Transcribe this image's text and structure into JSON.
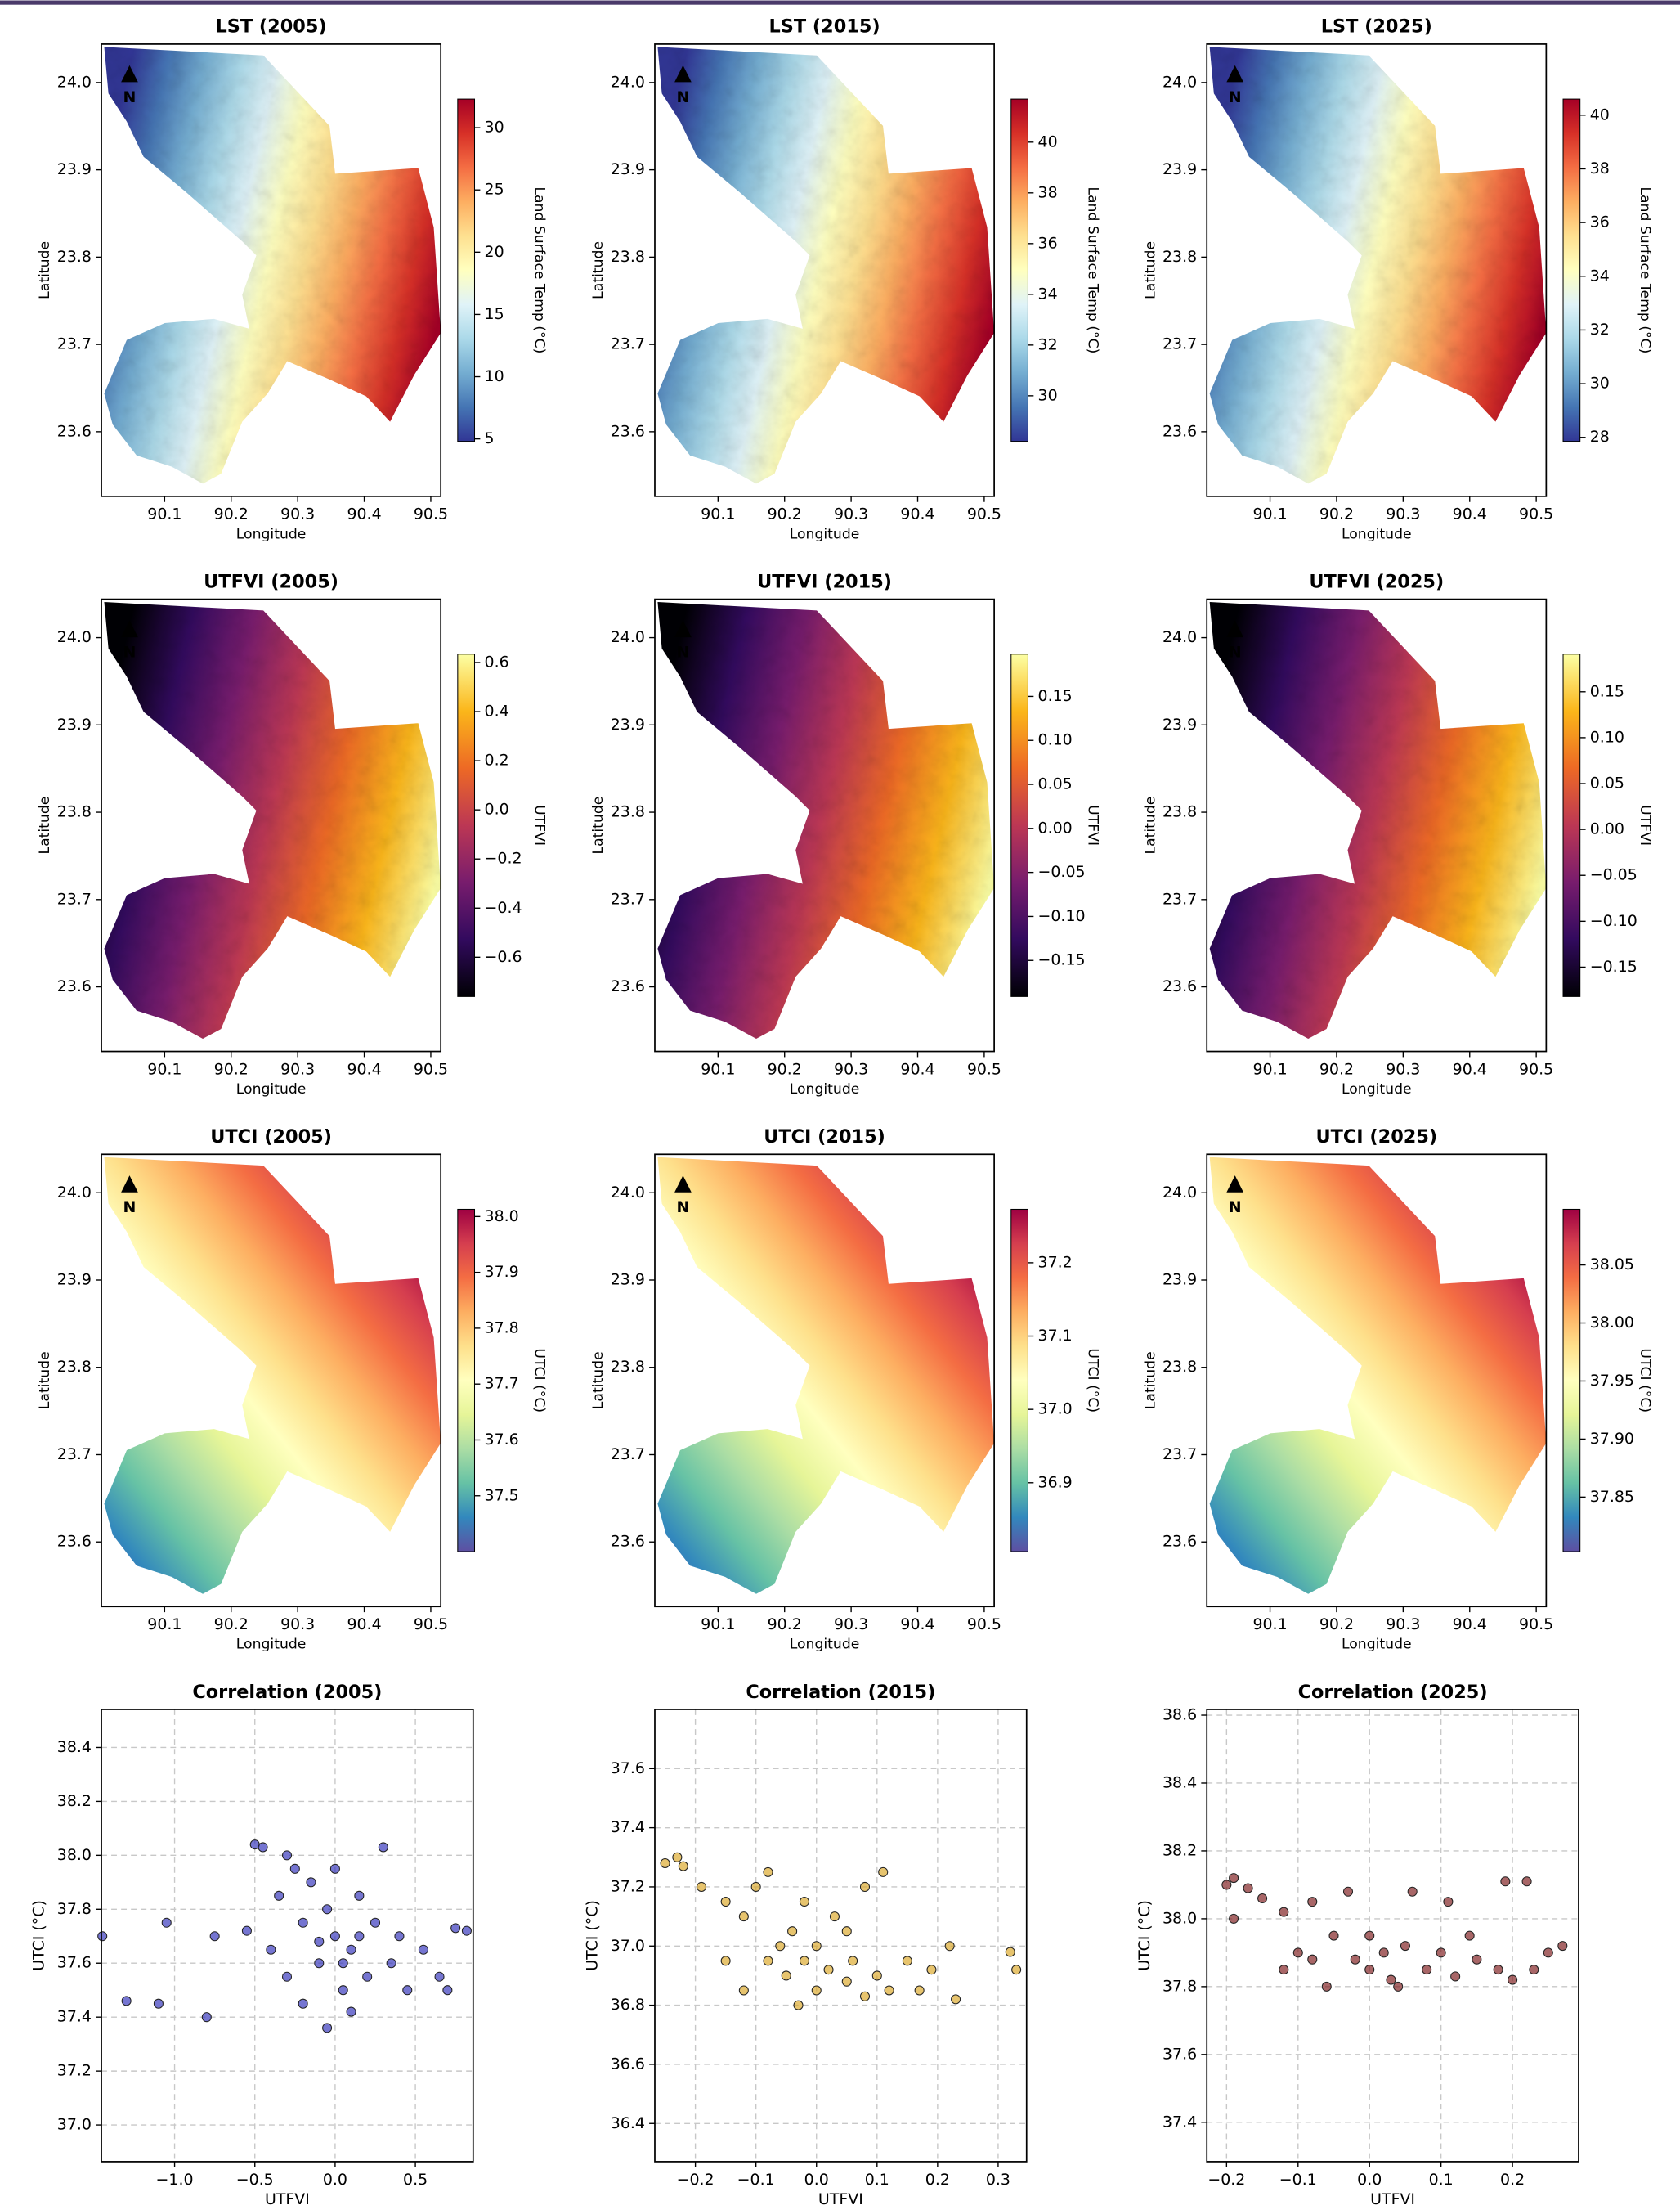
{
  "chart_data": [
    {
      "type": "map",
      "title": "LST (2005)",
      "xlabel": "Longitude",
      "ylabel": "Latitude",
      "north_label": "N",
      "xlim": [
        90.005,
        90.515
      ],
      "ylim": [
        23.526,
        24.044
      ],
      "xticks": [
        90.1,
        90.2,
        90.3,
        90.4,
        90.5
      ],
      "yticks": [
        23.6,
        23.7,
        23.8,
        23.9,
        {
          "value": 24,
          "label": "24.0"
        }
      ],
      "colorbar": {
        "label": "Land Surface Temp (°C)",
        "lim": [
          4.8,
          32.3
        ],
        "ticks": [
          5,
          10,
          15,
          20,
          25,
          30
        ],
        "colormap": [
          "#313695",
          "#4575b4",
          "#74add1",
          "#abd9e9",
          "#e0f3f8",
          "#ffffbf",
          "#fee090",
          "#fdae61",
          "#f46d43",
          "#d73027",
          "#a50026"
        ]
      }
    },
    {
      "type": "map",
      "title": "LST (2015)",
      "xlabel": "Longitude",
      "ylabel": "Latitude",
      "north_label": "N",
      "xlim": [
        90.005,
        90.515
      ],
      "ylim": [
        23.526,
        24.044
      ],
      "xticks": [
        90.1,
        90.2,
        90.3,
        90.4,
        90.5
      ],
      "yticks": [
        23.6,
        23.7,
        23.8,
        23.9,
        {
          "value": 24,
          "label": "24.0"
        }
      ],
      "colorbar": {
        "label": "Land Surface Temp (°C)",
        "lim": [
          28.2,
          41.7
        ],
        "ticks": [
          30,
          32,
          34,
          36,
          38,
          40
        ],
        "colormap": [
          "#313695",
          "#4575b4",
          "#74add1",
          "#abd9e9",
          "#e0f3f8",
          "#ffffbf",
          "#fee090",
          "#fdae61",
          "#f46d43",
          "#d73027",
          "#a50026"
        ]
      }
    },
    {
      "type": "map",
      "title": "LST (2025)",
      "xlabel": "Longitude",
      "ylabel": "Latitude",
      "north_label": "N",
      "xlim": [
        90.005,
        90.515
      ],
      "ylim": [
        23.526,
        24.044
      ],
      "xticks": [
        90.1,
        90.2,
        90.3,
        90.4,
        90.5
      ],
      "yticks": [
        23.6,
        23.7,
        23.8,
        23.9,
        {
          "value": 24,
          "label": "24.0"
        }
      ],
      "colorbar": {
        "label": "Land Surface Temp (°C)",
        "lim": [
          27.85,
          40.6
        ],
        "ticks": [
          28,
          30,
          32,
          34,
          36,
          38,
          40
        ],
        "colormap": [
          "#313695",
          "#4575b4",
          "#74add1",
          "#abd9e9",
          "#e0f3f8",
          "#ffffbf",
          "#fee090",
          "#fdae61",
          "#f46d43",
          "#d73027",
          "#a50026"
        ]
      }
    },
    {
      "type": "map",
      "title": "UTFVI (2005)",
      "xlabel": "Longitude",
      "ylabel": "Latitude",
      "north_label": "N",
      "xlim": [
        90.005,
        90.515
      ],
      "ylim": [
        23.526,
        24.044
      ],
      "xticks": [
        90.1,
        90.2,
        90.3,
        90.4,
        90.5
      ],
      "yticks": [
        23.6,
        23.7,
        23.8,
        23.9,
        {
          "value": 24,
          "label": "24.0"
        }
      ],
      "colorbar": {
        "label": "UTFVI",
        "lim": [
          -0.76,
          0.634
        ],
        "ticks": [
          {
            "value": -0.6,
            "label": "−0.6"
          },
          {
            "value": -0.4,
            "label": "−0.4"
          },
          {
            "value": -0.2,
            "label": "−0.2"
          },
          {
            "value": 0,
            "label": "0.0"
          },
          0.2,
          0.4,
          0.6
        ],
        "colormap": [
          "#000004",
          "#320a5e",
          "#781c6d",
          "#bc3754",
          "#ed6925",
          "#fbb61a",
          "#fcffa4"
        ]
      }
    },
    {
      "type": "map",
      "title": "UTFVI (2015)",
      "xlabel": "Longitude",
      "ylabel": "Latitude",
      "north_label": "N",
      "xlim": [
        90.005,
        90.515
      ],
      "ylim": [
        23.526,
        24.044
      ],
      "xticks": [
        90.1,
        90.2,
        90.3,
        90.4,
        90.5
      ],
      "yticks": [
        23.6,
        23.7,
        23.8,
        23.9,
        {
          "value": 24,
          "label": "24.0"
        }
      ],
      "colorbar": {
        "label": "UTFVI",
        "lim": [
          -0.191,
          0.198
        ],
        "ticks": [
          {
            "value": -0.15,
            "label": "−0.15"
          },
          {
            "value": -0.1,
            "label": "−0.10"
          },
          {
            "value": -0.05,
            "label": "−0.05"
          },
          {
            "value": 0,
            "label": "0.00"
          },
          0.05,
          {
            "value": 0.1,
            "label": "0.10"
          },
          0.15
        ],
        "colormap": [
          "#000004",
          "#320a5e",
          "#781c6d",
          "#bc3754",
          "#ed6925",
          "#fbb61a",
          "#fcffa4"
        ]
      }
    },
    {
      "type": "map",
      "title": "UTFVI (2025)",
      "xlabel": "Longitude",
      "ylabel": "Latitude",
      "north_label": "N",
      "xlim": [
        90.005,
        90.515
      ],
      "ylim": [
        23.526,
        24.044
      ],
      "xticks": [
        90.1,
        90.2,
        90.3,
        90.4,
        90.5
      ],
      "yticks": [
        23.6,
        23.7,
        23.8,
        23.9,
        {
          "value": 24,
          "label": "24.0"
        }
      ],
      "colorbar": {
        "label": "UTFVI",
        "lim": [
          -0.182,
          0.191
        ],
        "ticks": [
          {
            "value": -0.15,
            "label": "−0.15"
          },
          {
            "value": -0.1,
            "label": "−0.10"
          },
          {
            "value": -0.05,
            "label": "−0.05"
          },
          {
            "value": 0,
            "label": "0.00"
          },
          0.05,
          {
            "value": 0.1,
            "label": "0.10"
          },
          0.15
        ],
        "colormap": [
          "#000004",
          "#320a5e",
          "#781c6d",
          "#bc3754",
          "#ed6925",
          "#fbb61a",
          "#fcffa4"
        ]
      }
    },
    {
      "type": "map",
      "title": "UTCI (2005)",
      "xlabel": "Longitude",
      "ylabel": "Latitude",
      "north_label": "N",
      "xlim": [
        90.005,
        90.515
      ],
      "ylim": [
        23.526,
        24.044
      ],
      "xticks": [
        90.1,
        90.2,
        90.3,
        90.4,
        90.5
      ],
      "yticks": [
        23.6,
        23.7,
        23.8,
        23.9,
        {
          "value": 24,
          "label": "24.0"
        }
      ],
      "colorbar": {
        "label": "UTCI (°C)",
        "lim": [
          37.4,
          38.013
        ],
        "ticks": [
          37.5,
          37.6,
          37.7,
          37.8,
          37.9,
          {
            "value": 38,
            "label": "38.0"
          }
        ],
        "colormap": [
          "#5e4fa2",
          "#3288bd",
          "#66c2a5",
          "#abdda4",
          "#e6f598",
          "#ffffbf",
          "#fee08b",
          "#fdae61",
          "#f46d43",
          "#d53e4f",
          "#9e0142"
        ]
      }
    },
    {
      "type": "map",
      "title": "UTCI (2015)",
      "xlabel": "Longitude",
      "ylabel": "Latitude",
      "north_label": "N",
      "xlim": [
        90.005,
        90.515
      ],
      "ylim": [
        23.526,
        24.044
      ],
      "xticks": [
        90.1,
        90.2,
        90.3,
        90.4,
        90.5
      ],
      "yticks": [
        23.6,
        23.7,
        23.8,
        23.9,
        {
          "value": 24,
          "label": "24.0"
        }
      ],
      "colorbar": {
        "label": "UTCI (°C)",
        "lim": [
          36.806,
          37.273
        ],
        "ticks": [
          36.9,
          {
            "value": 37,
            "label": "37.0"
          },
          37.1,
          37.2
        ],
        "colormap": [
          "#5e4fa2",
          "#3288bd",
          "#66c2a5",
          "#abdda4",
          "#e6f598",
          "#ffffbf",
          "#fee08b",
          "#fdae61",
          "#f46d43",
          "#d53e4f",
          "#9e0142"
        ]
      }
    },
    {
      "type": "map",
      "title": "UTCI (2025)",
      "xlabel": "Longitude",
      "ylabel": "Latitude",
      "north_label": "N",
      "xlim": [
        90.005,
        90.515
      ],
      "ylim": [
        23.526,
        24.044
      ],
      "xticks": [
        90.1,
        90.2,
        90.3,
        90.4,
        90.5
      ],
      "yticks": [
        23.6,
        23.7,
        23.8,
        23.9,
        {
          "value": 24,
          "label": "24.0"
        }
      ],
      "colorbar": {
        "label": "UTCI (°C)",
        "lim": [
          37.803,
          38.098
        ],
        "ticks": [
          37.85,
          {
            "value": 37.9,
            "label": "37.90"
          },
          37.95,
          {
            "value": 38,
            "label": "38.00"
          },
          38.05
        ],
        "colormap": [
          "#5e4fa2",
          "#3288bd",
          "#66c2a5",
          "#abdda4",
          "#e6f598",
          "#ffffbf",
          "#fee08b",
          "#fdae61",
          "#f46d43",
          "#d53e4f",
          "#9e0142"
        ]
      }
    },
    {
      "type": "scatter",
      "title": "Correlation (2005)",
      "xlabel": "UTFVI",
      "ylabel": "UTCI (°C)",
      "grid": true,
      "color": "#2b2bb8",
      "xlim": [
        -1.456,
        0.86
      ],
      "ylim": [
        36.864,
        38.541
      ],
      "xticks": [
        {
          "value": -1,
          "label": "−1.0"
        },
        {
          "value": -0.5,
          "label": "−0.5"
        },
        {
          "value": 0,
          "label": "0.0"
        },
        0.5
      ],
      "yticks": [
        {
          "value": 37,
          "label": "37.0"
        },
        37.2,
        37.4,
        37.6,
        37.8,
        {
          "value": 38,
          "label": "38.0"
        },
        38.2,
        38.4
      ],
      "x": [
        -1.45,
        -1.3,
        -1.1,
        -1.05,
        -0.8,
        -0.75,
        -0.55,
        -0.5,
        -0.45,
        -0.4,
        -0.35,
        -0.3,
        -0.25,
        -0.2,
        -0.15,
        -0.1,
        -0.05,
        0,
        0.05,
        0.1,
        0.15,
        0.2,
        0.25,
        0.3,
        0.35,
        0.4,
        0.45,
        0.55,
        0.65,
        0.7,
        0.75,
        0.82,
        -0.05,
        0.1,
        -0.2,
        0,
        -0.3,
        0.05,
        0.15,
        -0.1
      ],
      "values": [
        37.7,
        37.46,
        37.45,
        37.75,
        37.4,
        37.7,
        37.72,
        38.04,
        38.03,
        37.65,
        37.85,
        37.55,
        37.95,
        37.75,
        37.9,
        37.6,
        37.8,
        37.7,
        37.5,
        37.65,
        37.85,
        37.55,
        37.75,
        38.03,
        37.6,
        37.7,
        37.5,
        37.65,
        37.55,
        37.5,
        37.73,
        37.72,
        37.36,
        37.42,
        37.45,
        37.95,
        38,
        37.6,
        37.7,
        37.68
      ]
    },
    {
      "type": "scatter",
      "title": "Correlation (2015)",
      "xlabel": "UTFVI",
      "ylabel": "UTCI (°C)",
      "grid": true,
      "color": "#daa520",
      "xlim": [
        -0.267,
        0.347
      ],
      "ylim": [
        36.271,
        37.8
      ],
      "xticks": [
        {
          "value": -0.2,
          "label": "−0.2"
        },
        {
          "value": -0.1,
          "label": "−0.1"
        },
        {
          "value": 0,
          "label": "0.0"
        },
        0.1,
        0.2,
        0.3
      ],
      "yticks": [
        36.4,
        36.6,
        36.8,
        {
          "value": 37,
          "label": "37.0"
        },
        37.2,
        37.4,
        37.6
      ],
      "x": [
        -0.25,
        -0.23,
        -0.22,
        -0.19,
        -0.15,
        -0.12,
        -0.1,
        -0.08,
        -0.06,
        -0.05,
        -0.04,
        -0.02,
        0,
        0,
        0.02,
        0.03,
        0.05,
        0.06,
        0.08,
        0.1,
        0.11,
        0.12,
        0.15,
        0.17,
        0.19,
        0.22,
        0.23,
        -0.03,
        0.05,
        -0.08,
        0.32,
        0.33,
        -0.12,
        -0.15,
        0.08,
        -0.02
      ],
      "values": [
        37.28,
        37.3,
        37.27,
        37.2,
        37.15,
        37.1,
        37.2,
        37.25,
        37,
        36.9,
        37.05,
        36.95,
        36.85,
        37,
        36.92,
        37.1,
        36.88,
        36.95,
        37.2,
        36.9,
        37.25,
        36.85,
        36.95,
        36.85,
        36.92,
        37,
        36.82,
        36.8,
        37.05,
        36.95,
        36.98,
        36.92,
        36.85,
        36.95,
        36.83,
        37.15
      ]
    },
    {
      "type": "scatter",
      "title": "Correlation (2025)",
      "xlabel": "UTFVI",
      "ylabel": "UTCI (°C)",
      "grid": true,
      "color": "#7a1416",
      "xlim": [
        -0.2276,
        0.2925
      ],
      "ylim": [
        37.284,
        38.617
      ],
      "xticks": [
        {
          "value": -0.2,
          "label": "−0.2"
        },
        {
          "value": -0.1,
          "label": "−0.1"
        },
        {
          "value": 0,
          "label": "0.0"
        },
        0.1,
        0.2
      ],
      "yticks": [
        37.4,
        37.6,
        37.8,
        {
          "value": 38,
          "label": "38.0"
        },
        38.2,
        38.4,
        38.6
      ],
      "x": [
        -0.2,
        -0.19,
        -0.17,
        -0.15,
        -0.19,
        -0.12,
        -0.1,
        -0.08,
        -0.06,
        -0.05,
        -0.03,
        -0.02,
        0,
        0,
        0.02,
        0.03,
        0.05,
        0.06,
        0.08,
        0.1,
        0.12,
        0.14,
        0.15,
        0.18,
        0.19,
        0.22,
        0.2,
        0.25,
        0.27,
        0.23,
        -0.08,
        0.11,
        -0.12,
        0.04
      ],
      "values": [
        38.1,
        38.12,
        38.09,
        38.06,
        38,
        37.85,
        37.9,
        38.05,
        37.8,
        37.95,
        38.08,
        37.88,
        37.85,
        37.95,
        37.9,
        37.82,
        37.92,
        38.08,
        37.85,
        37.9,
        37.83,
        37.95,
        37.88,
        37.85,
        38.11,
        38.11,
        37.82,
        37.9,
        37.92,
        37.85,
        37.88,
        38.05,
        38.02,
        37.8
      ]
    }
  ]
}
